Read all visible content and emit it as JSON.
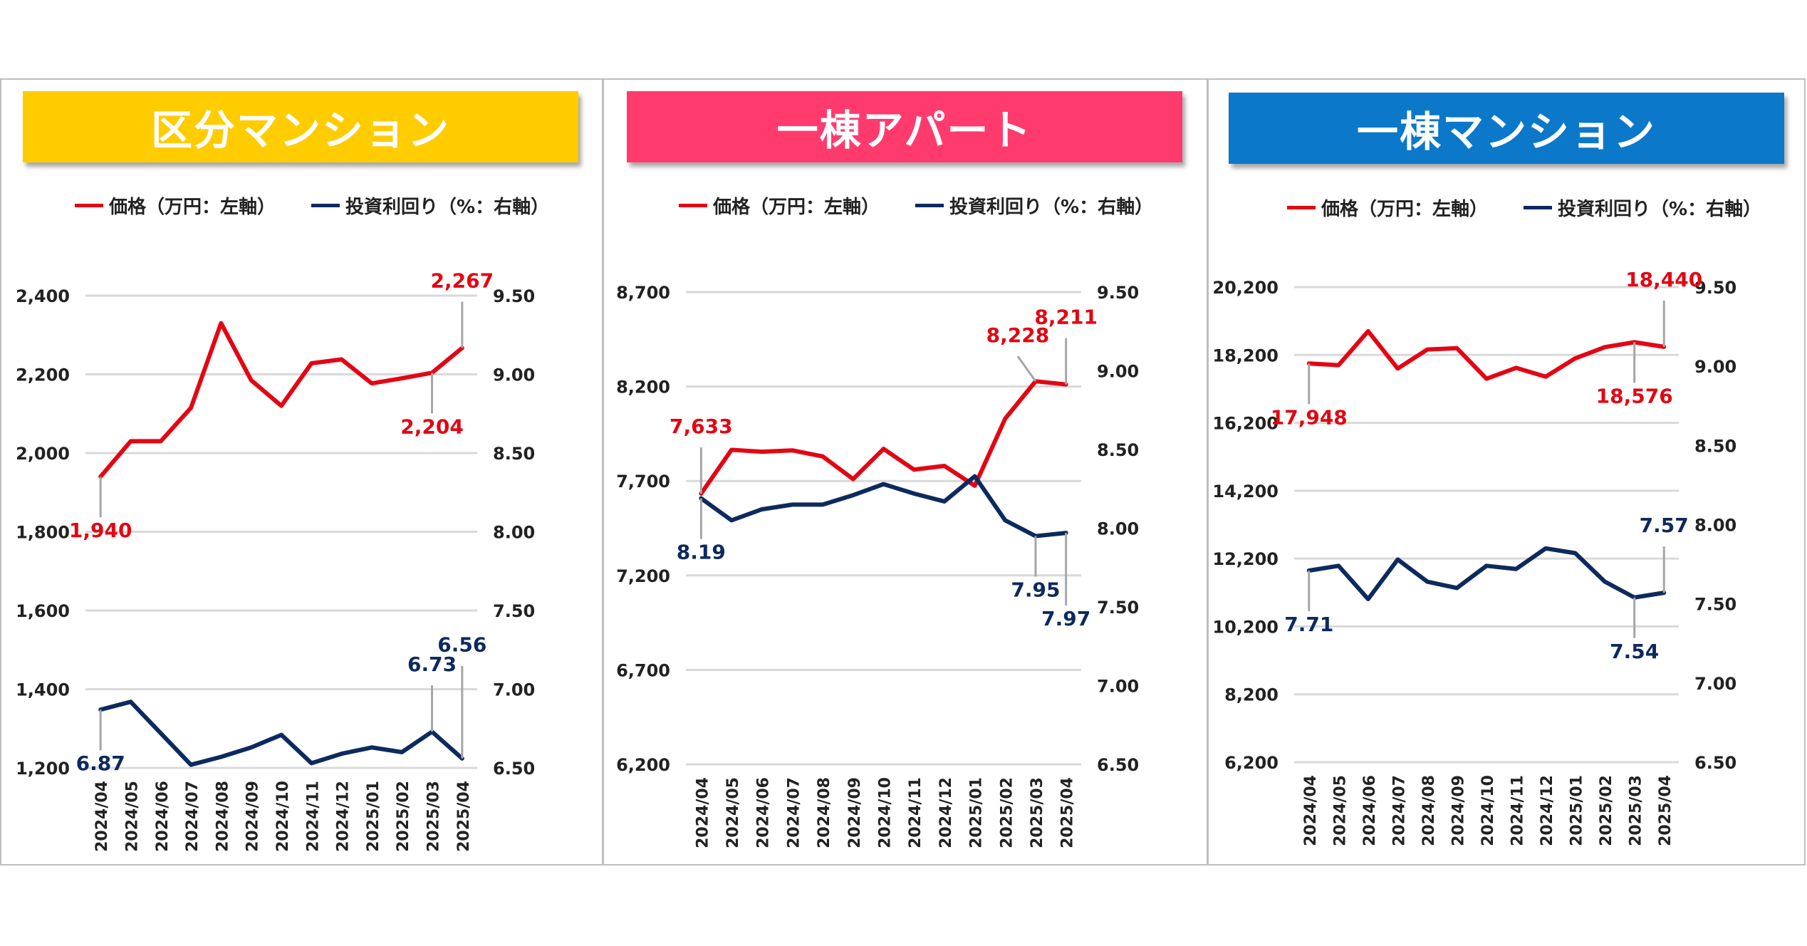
{
  "colors": {
    "price_line": "#e30613",
    "yield_line": "#0d2a5e",
    "grid": "#d9d9d9",
    "price_label": "#e30613",
    "yield_label": "#0d2a5e",
    "leader": "#a6a6a6"
  },
  "legend": {
    "price": "価格（万円：左軸）",
    "yield": "投資利回り（%：右軸）"
  },
  "chart_data": [
    {
      "type": "line",
      "title": "区分マンション",
      "title_color": "#ffcc00",
      "categories": [
        "2024/04",
        "2024/05",
        "2024/06",
        "2024/07",
        "2024/08",
        "2024/09",
        "2024/10",
        "2024/11",
        "2024/12",
        "2025/01",
        "2025/02",
        "2025/03",
        "2025/04"
      ],
      "left_axis": {
        "ticks": [
          "1,200",
          "1,400",
          "1,600",
          "1,800",
          "2,000",
          "2,200",
          "2,400"
        ],
        "range": [
          1200,
          2400
        ]
      },
      "right_axis": {
        "ticks": [
          "6.50",
          "7.00",
          "7.50",
          "8.00",
          "8.50",
          "9.00",
          "9.50"
        ],
        "range": [
          6.5,
          9.5
        ]
      },
      "series": [
        {
          "name": "価格（万円：左軸）",
          "axis": "left",
          "values": [
            1940,
            2030,
            2030,
            2115,
            2330,
            2185,
            2120,
            2228,
            2238,
            2177,
            2190,
            2204,
            2267
          ]
        },
        {
          "name": "投資利回り（%：右軸）",
          "axis": "right",
          "values": [
            6.87,
            6.92,
            6.72,
            6.52,
            6.57,
            6.63,
            6.71,
            6.53,
            6.59,
            6.63,
            6.6,
            6.73,
            6.56
          ]
        }
      ],
      "annotations": [
        {
          "series": 0,
          "index": 0,
          "text": "1,940",
          "pos": "below"
        },
        {
          "series": 0,
          "index": 11,
          "text": "2,204",
          "pos": "below"
        },
        {
          "series": 0,
          "index": 12,
          "text": "2,267",
          "pos": "above"
        },
        {
          "series": 1,
          "index": 0,
          "text": "6.87",
          "pos": "below"
        },
        {
          "series": 1,
          "index": 11,
          "text": "6.73",
          "pos": "above"
        },
        {
          "series": 1,
          "index": 12,
          "text": "6.56",
          "pos": "above-high"
        }
      ]
    },
    {
      "type": "line",
      "title": "一棟アパート",
      "title_color": "#ff3b6e",
      "categories": [
        "2024/04",
        "2024/05",
        "2024/06",
        "2024/07",
        "2024/08",
        "2024/09",
        "2024/10",
        "2024/11",
        "2024/12",
        "2025/01",
        "2025/02",
        "2025/03",
        "2025/04"
      ],
      "left_axis": {
        "ticks": [
          "6,200",
          "6,700",
          "7,200",
          "7,700",
          "8,200",
          "8,700"
        ],
        "range": [
          6200,
          8700
        ]
      },
      "right_axis": {
        "ticks": [
          "6.50",
          "7.00",
          "7.50",
          "8.00",
          "8.50",
          "9.00",
          "9.50"
        ],
        "range": [
          6.5,
          9.5
        ]
      },
      "series": [
        {
          "name": "価格（万円：左軸）",
          "axis": "left",
          "values": [
            7633,
            7865,
            7855,
            7862,
            7830,
            7710,
            7870,
            7760,
            7780,
            7675,
            8030,
            8228,
            8211
          ]
        },
        {
          "name": "投資利回り（%：右軸）",
          "axis": "right",
          "values": [
            8.19,
            8.05,
            8.12,
            8.15,
            8.15,
            8.21,
            8.28,
            8.22,
            8.17,
            8.33,
            8.05,
            7.95,
            7.97
          ]
        }
      ],
      "annotations": [
        {
          "series": 0,
          "index": 0,
          "text": "7,633",
          "pos": "above"
        },
        {
          "series": 0,
          "index": 11,
          "text": "8,228",
          "pos": "above-left"
        },
        {
          "series": 0,
          "index": 12,
          "text": "8,211",
          "pos": "above"
        },
        {
          "series": 1,
          "index": 0,
          "text": "8.19",
          "pos": "below"
        },
        {
          "series": 1,
          "index": 11,
          "text": "7.95",
          "pos": "below"
        },
        {
          "series": 1,
          "index": 12,
          "text": "7.97",
          "pos": "below-low"
        }
      ]
    },
    {
      "type": "line",
      "title": "一棟マンション",
      "title_color": "#0b78c9",
      "categories": [
        "2024/04",
        "2024/05",
        "2024/06",
        "2024/07",
        "2024/08",
        "2024/09",
        "2024/10",
        "2024/11",
        "2024/12",
        "2025/01",
        "2025/02",
        "2025/03",
        "2025/04"
      ],
      "left_axis": {
        "ticks": [
          "6,200",
          "8,200",
          "10,200",
          "12,200",
          "14,200",
          "16,200",
          "18,200",
          "20,200"
        ],
        "range": [
          6200,
          20200
        ]
      },
      "right_axis": {
        "ticks": [
          "6.50",
          "7.00",
          "7.50",
          "8.00",
          "8.50",
          "9.00",
          "9.50"
        ],
        "range": [
          6.5,
          9.5
        ]
      },
      "series": [
        {
          "name": "価格（万円：左軸）",
          "axis": "left",
          "values": [
            17948,
            17900,
            18900,
            17800,
            18360,
            18400,
            17500,
            17820,
            17560,
            18100,
            18430,
            18576,
            18440
          ]
        },
        {
          "name": "投資利回り（%：右軸）",
          "axis": "right",
          "values": [
            7.71,
            7.74,
            7.53,
            7.78,
            7.64,
            7.6,
            7.74,
            7.72,
            7.85,
            7.82,
            7.64,
            7.54,
            7.57
          ]
        }
      ],
      "annotations": [
        {
          "series": 0,
          "index": 0,
          "text": "17,948",
          "pos": "below"
        },
        {
          "series": 0,
          "index": 11,
          "text": "18,576",
          "pos": "below"
        },
        {
          "series": 0,
          "index": 12,
          "text": "18,440",
          "pos": "above"
        },
        {
          "series": 1,
          "index": 0,
          "text": "7.71",
          "pos": "below"
        },
        {
          "series": 1,
          "index": 11,
          "text": "7.54",
          "pos": "below"
        },
        {
          "series": 1,
          "index": 12,
          "text": "7.57",
          "pos": "above"
        }
      ]
    }
  ]
}
